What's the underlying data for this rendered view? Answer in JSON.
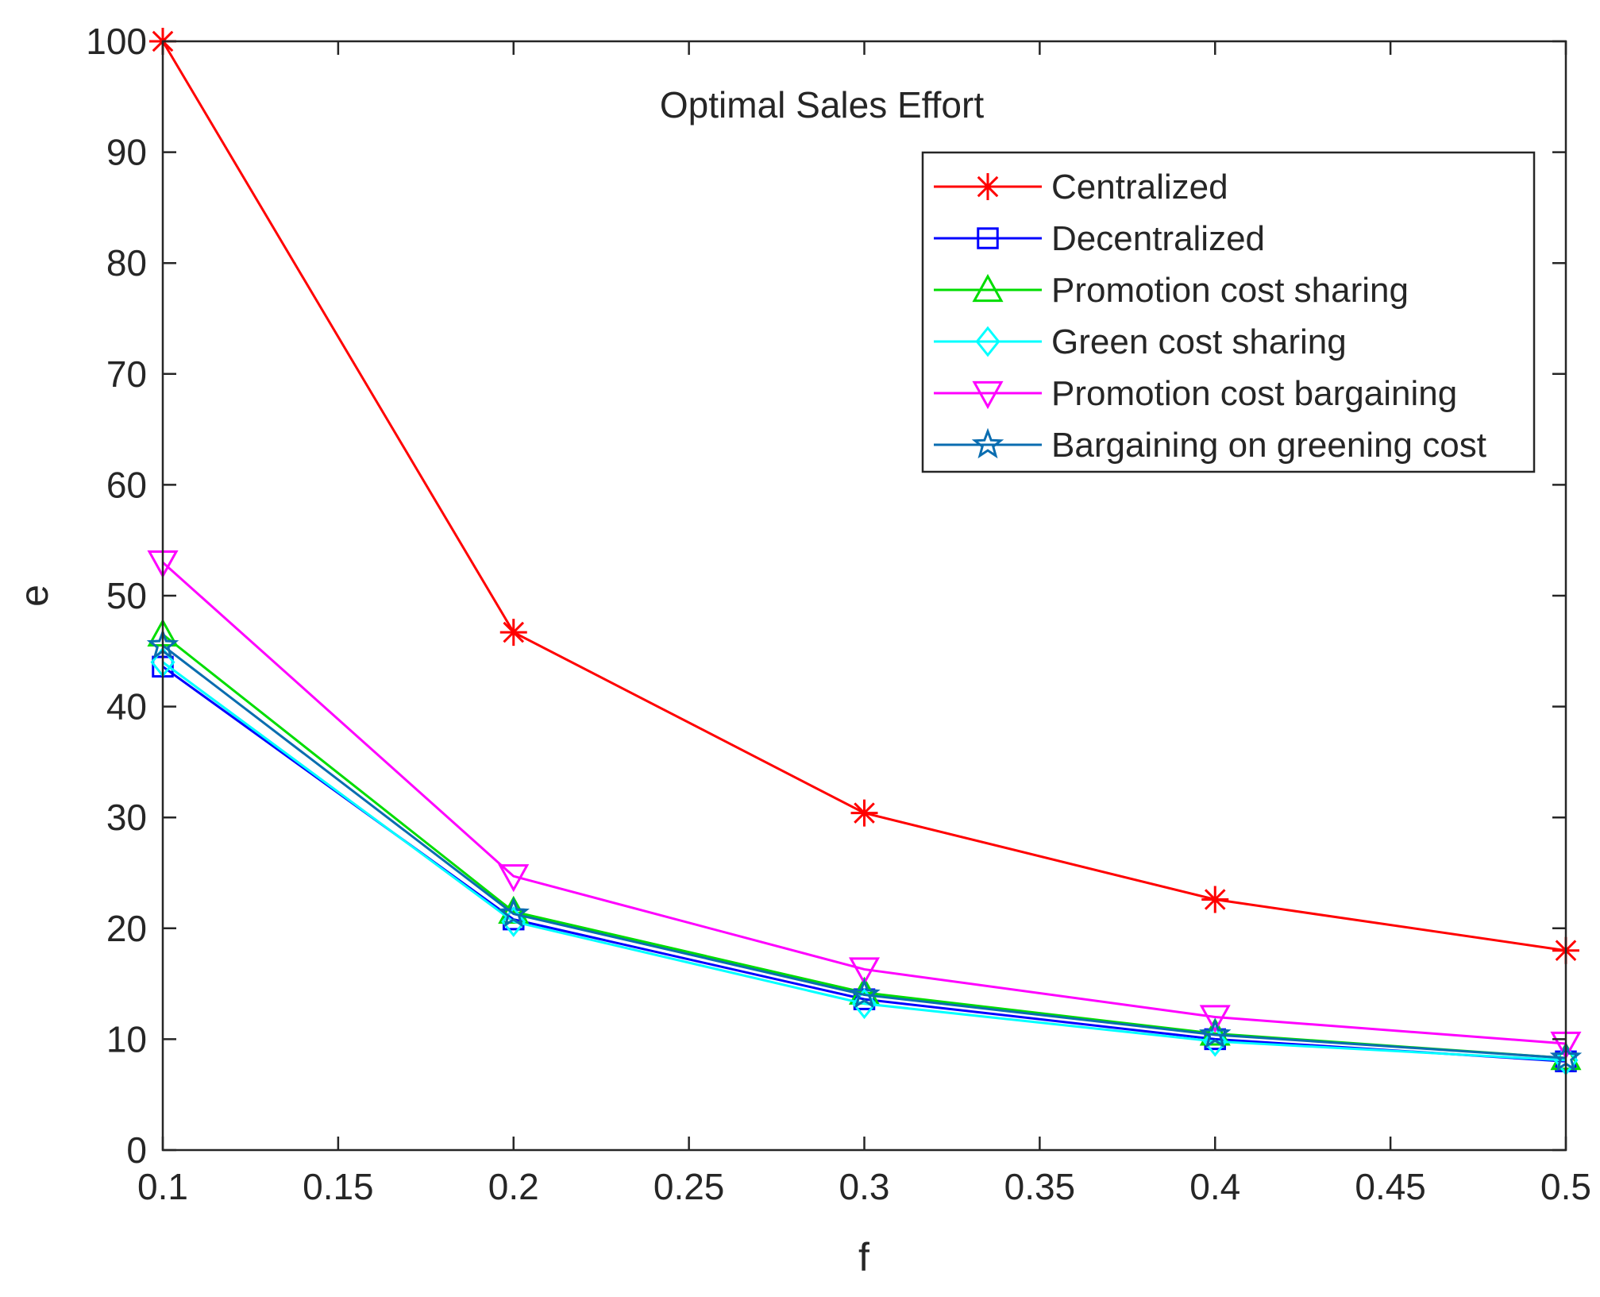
{
  "chart_data": {
    "type": "line",
    "title": "Optimal Sales Effort",
    "xlabel": "f",
    "ylabel": "e",
    "x": [
      0.1,
      0.2,
      0.3,
      0.4,
      0.5
    ],
    "xlim": [
      0.1,
      0.5
    ],
    "ylim": [
      0,
      100
    ],
    "xticks": [
      0.1,
      0.15,
      0.2,
      0.25,
      0.3,
      0.35,
      0.4,
      0.45,
      0.5
    ],
    "xtick_labels": [
      "0.1",
      "0.15",
      "0.2",
      "0.25",
      "0.3",
      "0.35",
      "0.4",
      "0.45",
      "0.5"
    ],
    "yticks": [
      0,
      10,
      20,
      30,
      40,
      50,
      60,
      70,
      80,
      90,
      100
    ],
    "ytick_labels": [
      "0",
      "10",
      "20",
      "30",
      "40",
      "50",
      "60",
      "70",
      "80",
      "90",
      "100"
    ],
    "grid": false,
    "legend_position": "top-right",
    "series": [
      {
        "name": "Centralized",
        "color": "#ff0000",
        "marker": "asterisk",
        "values": [
          100,
          46.7,
          30.4,
          22.6,
          18.0
        ]
      },
      {
        "name": "Decentralized",
        "color": "#0000ff",
        "marker": "square",
        "values": [
          43.6,
          20.8,
          13.6,
          10.0,
          8.0
        ]
      },
      {
        "name": "Promotion cost sharing",
        "color": "#00dd00",
        "marker": "triangle-up",
        "values": [
          46.5,
          21.5,
          14.2,
          10.5,
          8.3
        ]
      },
      {
        "name": "Green cost sharing",
        "color": "#00ffff",
        "marker": "diamond",
        "values": [
          44.0,
          20.6,
          13.2,
          9.8,
          8.1
        ]
      },
      {
        "name": "Promotion cost bargaining",
        "color": "#ff00ff",
        "marker": "triangle-down",
        "values": [
          53.0,
          24.7,
          16.3,
          12.0,
          9.6
        ]
      },
      {
        "name": "Bargaining on greening cost",
        "color": "#0a6db0",
        "marker": "pentagram",
        "values": [
          45.5,
          21.3,
          14.0,
          10.4,
          8.3
        ]
      }
    ]
  }
}
